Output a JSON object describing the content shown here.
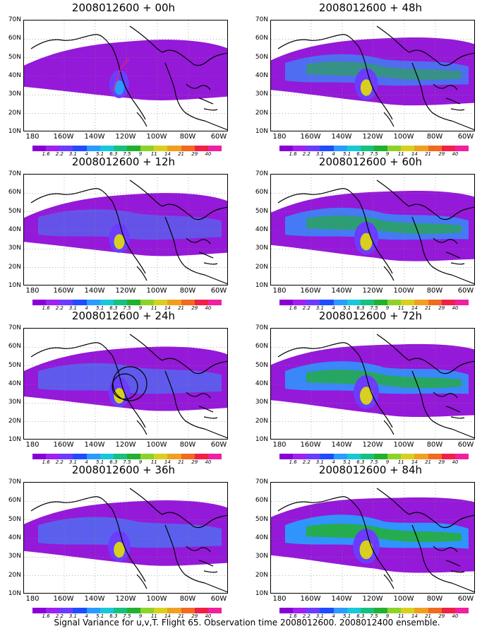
{
  "panels": [
    {
      "title": "2008012600 + 00h",
      "intensity": 0.25,
      "mark": "dots"
    },
    {
      "title": "2008012600 + 48h",
      "intensity": 0.55,
      "mark": ""
    },
    {
      "title": "2008012600 + 12h",
      "intensity": 0.35,
      "mark": ""
    },
    {
      "title": "2008012600 + 60h",
      "intensity": 0.65,
      "mark": ""
    },
    {
      "title": "2008012600 + 24h",
      "intensity": 0.4,
      "mark": "circles"
    },
    {
      "title": "2008012600 + 72h",
      "intensity": 0.75,
      "mark": ""
    },
    {
      "title": "2008012600 + 36h",
      "intensity": 0.45,
      "mark": ""
    },
    {
      "title": "2008012600 + 84h",
      "intensity": 0.85,
      "mark": ""
    }
  ],
  "lat_labels": [
    "70N",
    "60N",
    "50N",
    "40N",
    "30N",
    "20N",
    "10N"
  ],
  "lon_labels": [
    "180",
    "160W",
    "140W",
    "120W",
    "100W",
    "80W",
    "60W"
  ],
  "colorbar": {
    "colors": [
      "#8a00d4",
      "#a020f0",
      "#6b3cff",
      "#1f4cff",
      "#2a9bff",
      "#18c8d8",
      "#18c080",
      "#22b030",
      "#8cd22a",
      "#d8d020",
      "#f0a020",
      "#f06a20",
      "#f02048",
      "#f020a0"
    ],
    "labels": [
      "1.6",
      "2.2",
      "3.1",
      "4",
      "5.1",
      "6.3",
      "7.5",
      "9",
      "11",
      "14",
      "21",
      "29",
      "40"
    ]
  },
  "caption": "Signal Variance for u,v,T. Flight 65. Observation time 2008012600. 2008012400 ensemble."
}
